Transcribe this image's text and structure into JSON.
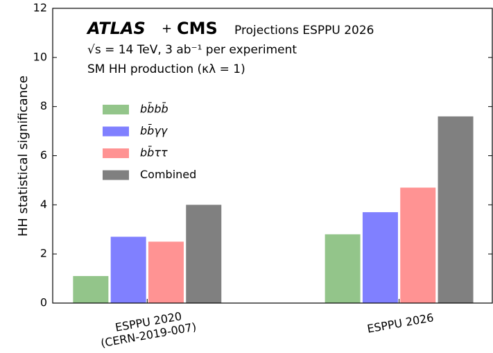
{
  "chart_data": {
    "type": "bar",
    "title_parts": [
      "ATLAS",
      "+",
      "CMS",
      "Projections ESPPU 2026"
    ],
    "subtitle_lines": [
      "√s = 14 TeV, 3 ab⁻¹ per experiment",
      "SM HH production (κλ = 1)"
    ],
    "ylabel": "HH statistical significance",
    "categories": [
      [
        "ESPPU 2020",
        "(CERN-2019-007)"
      ],
      [
        "ESPPU 2026"
      ]
    ],
    "series": [
      {
        "name": "bb̄bb̄",
        "color": "#93c58a",
        "values": [
          1.1,
          2.8
        ]
      },
      {
        "name": "bb̄γγ",
        "color": "#8080ff",
        "values": [
          2.7,
          3.7
        ]
      },
      {
        "name": "bb̄ττ",
        "color": "#ff9393",
        "values": [
          2.5,
          4.7
        ]
      },
      {
        "name": "Combined",
        "color": "#808080",
        "values": [
          4.0,
          7.6
        ]
      }
    ],
    "ylim": [
      0,
      12
    ],
    "yticks": [
      0,
      2,
      4,
      6,
      8,
      10,
      12
    ],
    "grid": false,
    "legend": "upper left"
  }
}
